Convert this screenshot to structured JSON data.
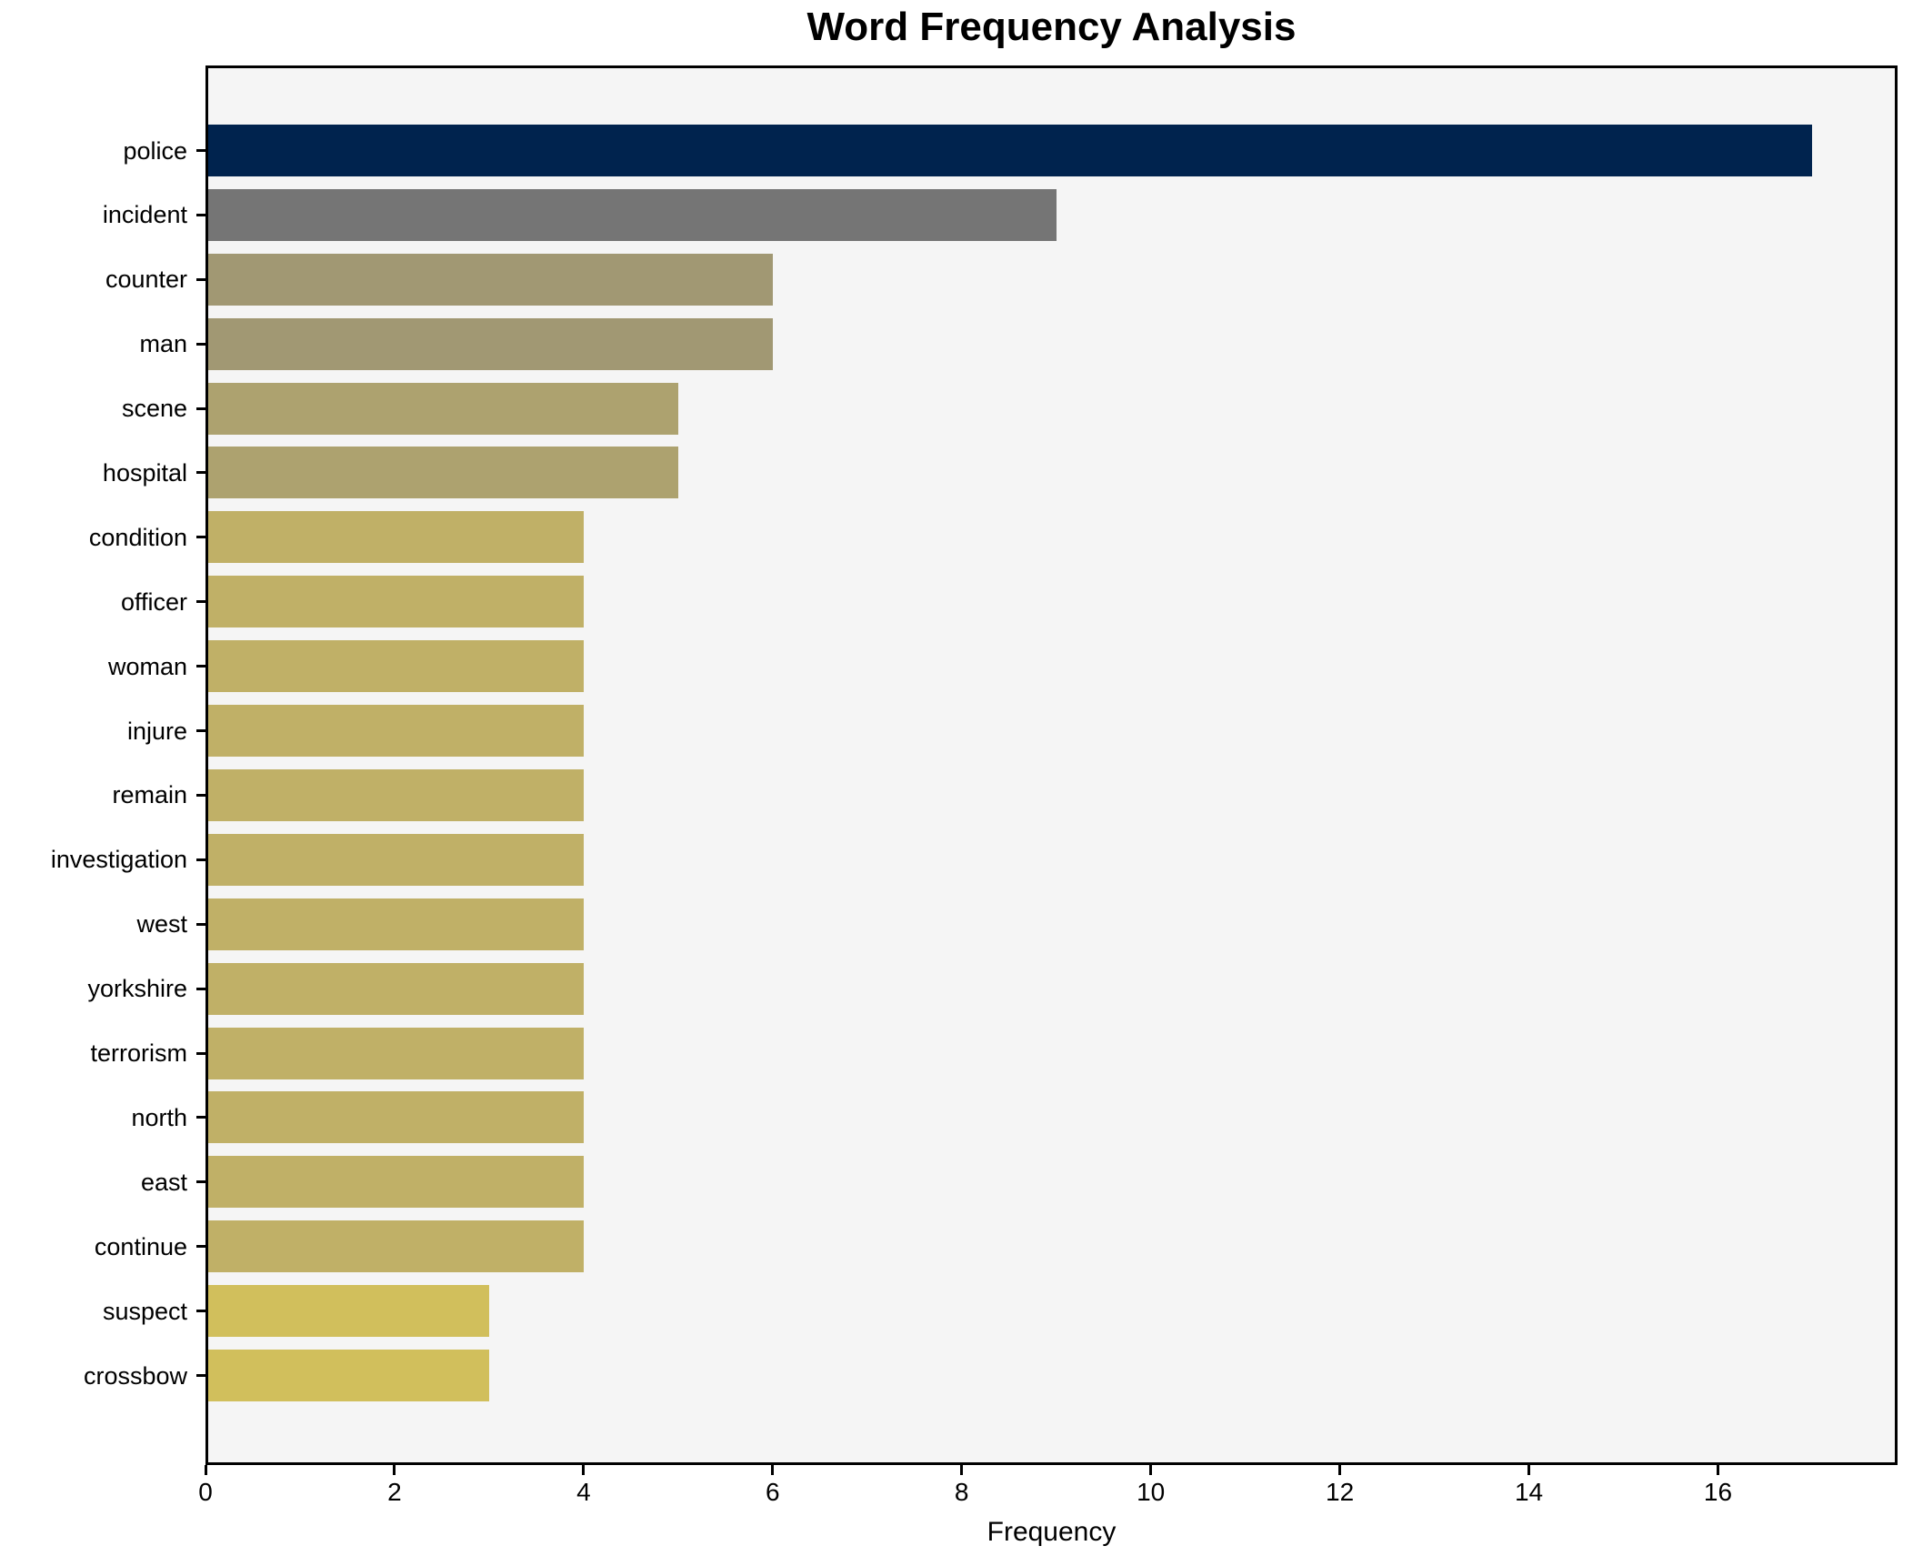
{
  "chart_data": {
    "type": "bar",
    "orientation": "horizontal",
    "title": "Word Frequency Analysis",
    "xlabel": "Frequency",
    "ylabel": "",
    "categories": [
      "police",
      "incident",
      "counter",
      "man",
      "scene",
      "hospital",
      "condition",
      "officer",
      "woman",
      "injure",
      "remain",
      "investigation",
      "west",
      "yorkshire",
      "terrorism",
      "north",
      "east",
      "continue",
      "suspect",
      "crossbow"
    ],
    "values": [
      17,
      9,
      6,
      6,
      5,
      5,
      4,
      4,
      4,
      4,
      4,
      4,
      4,
      4,
      4,
      4,
      4,
      4,
      3,
      3
    ],
    "bar_colors": [
      "#00234e",
      "#757575",
      "#a19873",
      "#a19873",
      "#ada26f",
      "#ada26f",
      "#c0b067",
      "#c0b067",
      "#c0b067",
      "#c0b067",
      "#c0b067",
      "#c0b067",
      "#c0b067",
      "#c0b067",
      "#c0b067",
      "#c0b067",
      "#c0b067",
      "#c0b067",
      "#d1bf5c",
      "#d1bf5c"
    ],
    "xticks": [
      0,
      2,
      4,
      6,
      8,
      10,
      12,
      14,
      16
    ],
    "xlim": [
      0,
      17.9
    ],
    "grid": false,
    "legend_position": "none"
  },
  "colors": {
    "figure_bg": "#ffffff",
    "plot_bg": "#f5f5f5",
    "spine": "#000000",
    "text": "#000000"
  }
}
